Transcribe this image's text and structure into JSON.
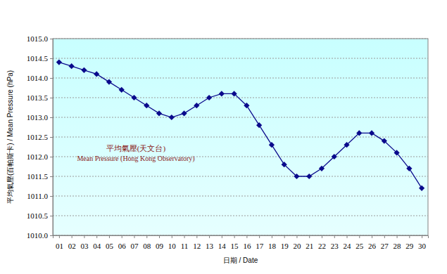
{
  "chart_data": {
    "type": "line",
    "x_label": "日期 / Date",
    "y_label": "平均氣壓(百帕斯卡) / Mean Pressure (hPa)",
    "annotations": [
      "平均氣壓(天文台)",
      "Mean Pressure (Hong Kong Observatory)"
    ],
    "categories": [
      "01",
      "02",
      "03",
      "04",
      "05",
      "06",
      "07",
      "08",
      "09",
      "10",
      "11",
      "12",
      "13",
      "14",
      "15",
      "16",
      "17",
      "18",
      "19",
      "20",
      "21",
      "22",
      "23",
      "24",
      "25",
      "26",
      "27",
      "28",
      "29",
      "30"
    ],
    "values": [
      1014.4,
      1014.3,
      1014.2,
      1014.1,
      1013.9,
      1013.7,
      1013.5,
      1013.3,
      1013.1,
      1013.0,
      1013.1,
      1013.3,
      1013.5,
      1013.6,
      1013.6,
      1013.3,
      1012.8,
      1012.3,
      1011.8,
      1011.5,
      1011.5,
      1011.7,
      1012.0,
      1012.3,
      1012.6,
      1012.6,
      1012.4,
      1012.1,
      1011.7,
      1011.2
    ],
    "color": "#0a0a8c",
    "marker": "diamond",
    "line_style": "solid",
    "ylim": [
      1010,
      1015
    ],
    "yticks": [
      {
        "value": 1010,
        "label": "1010.0"
      },
      1010.5,
      {
        "value": 1011,
        "label": "1011.0"
      },
      1011.5,
      {
        "value": 1012,
        "label": "1012.0"
      },
      1012.5,
      {
        "value": 1013,
        "label": "1013.0"
      },
      1013.5,
      {
        "value": 1014,
        "label": "1014.0"
      },
      1014.5,
      {
        "value": 1015,
        "label": "1015.0"
      }
    ],
    "grid": true
  }
}
